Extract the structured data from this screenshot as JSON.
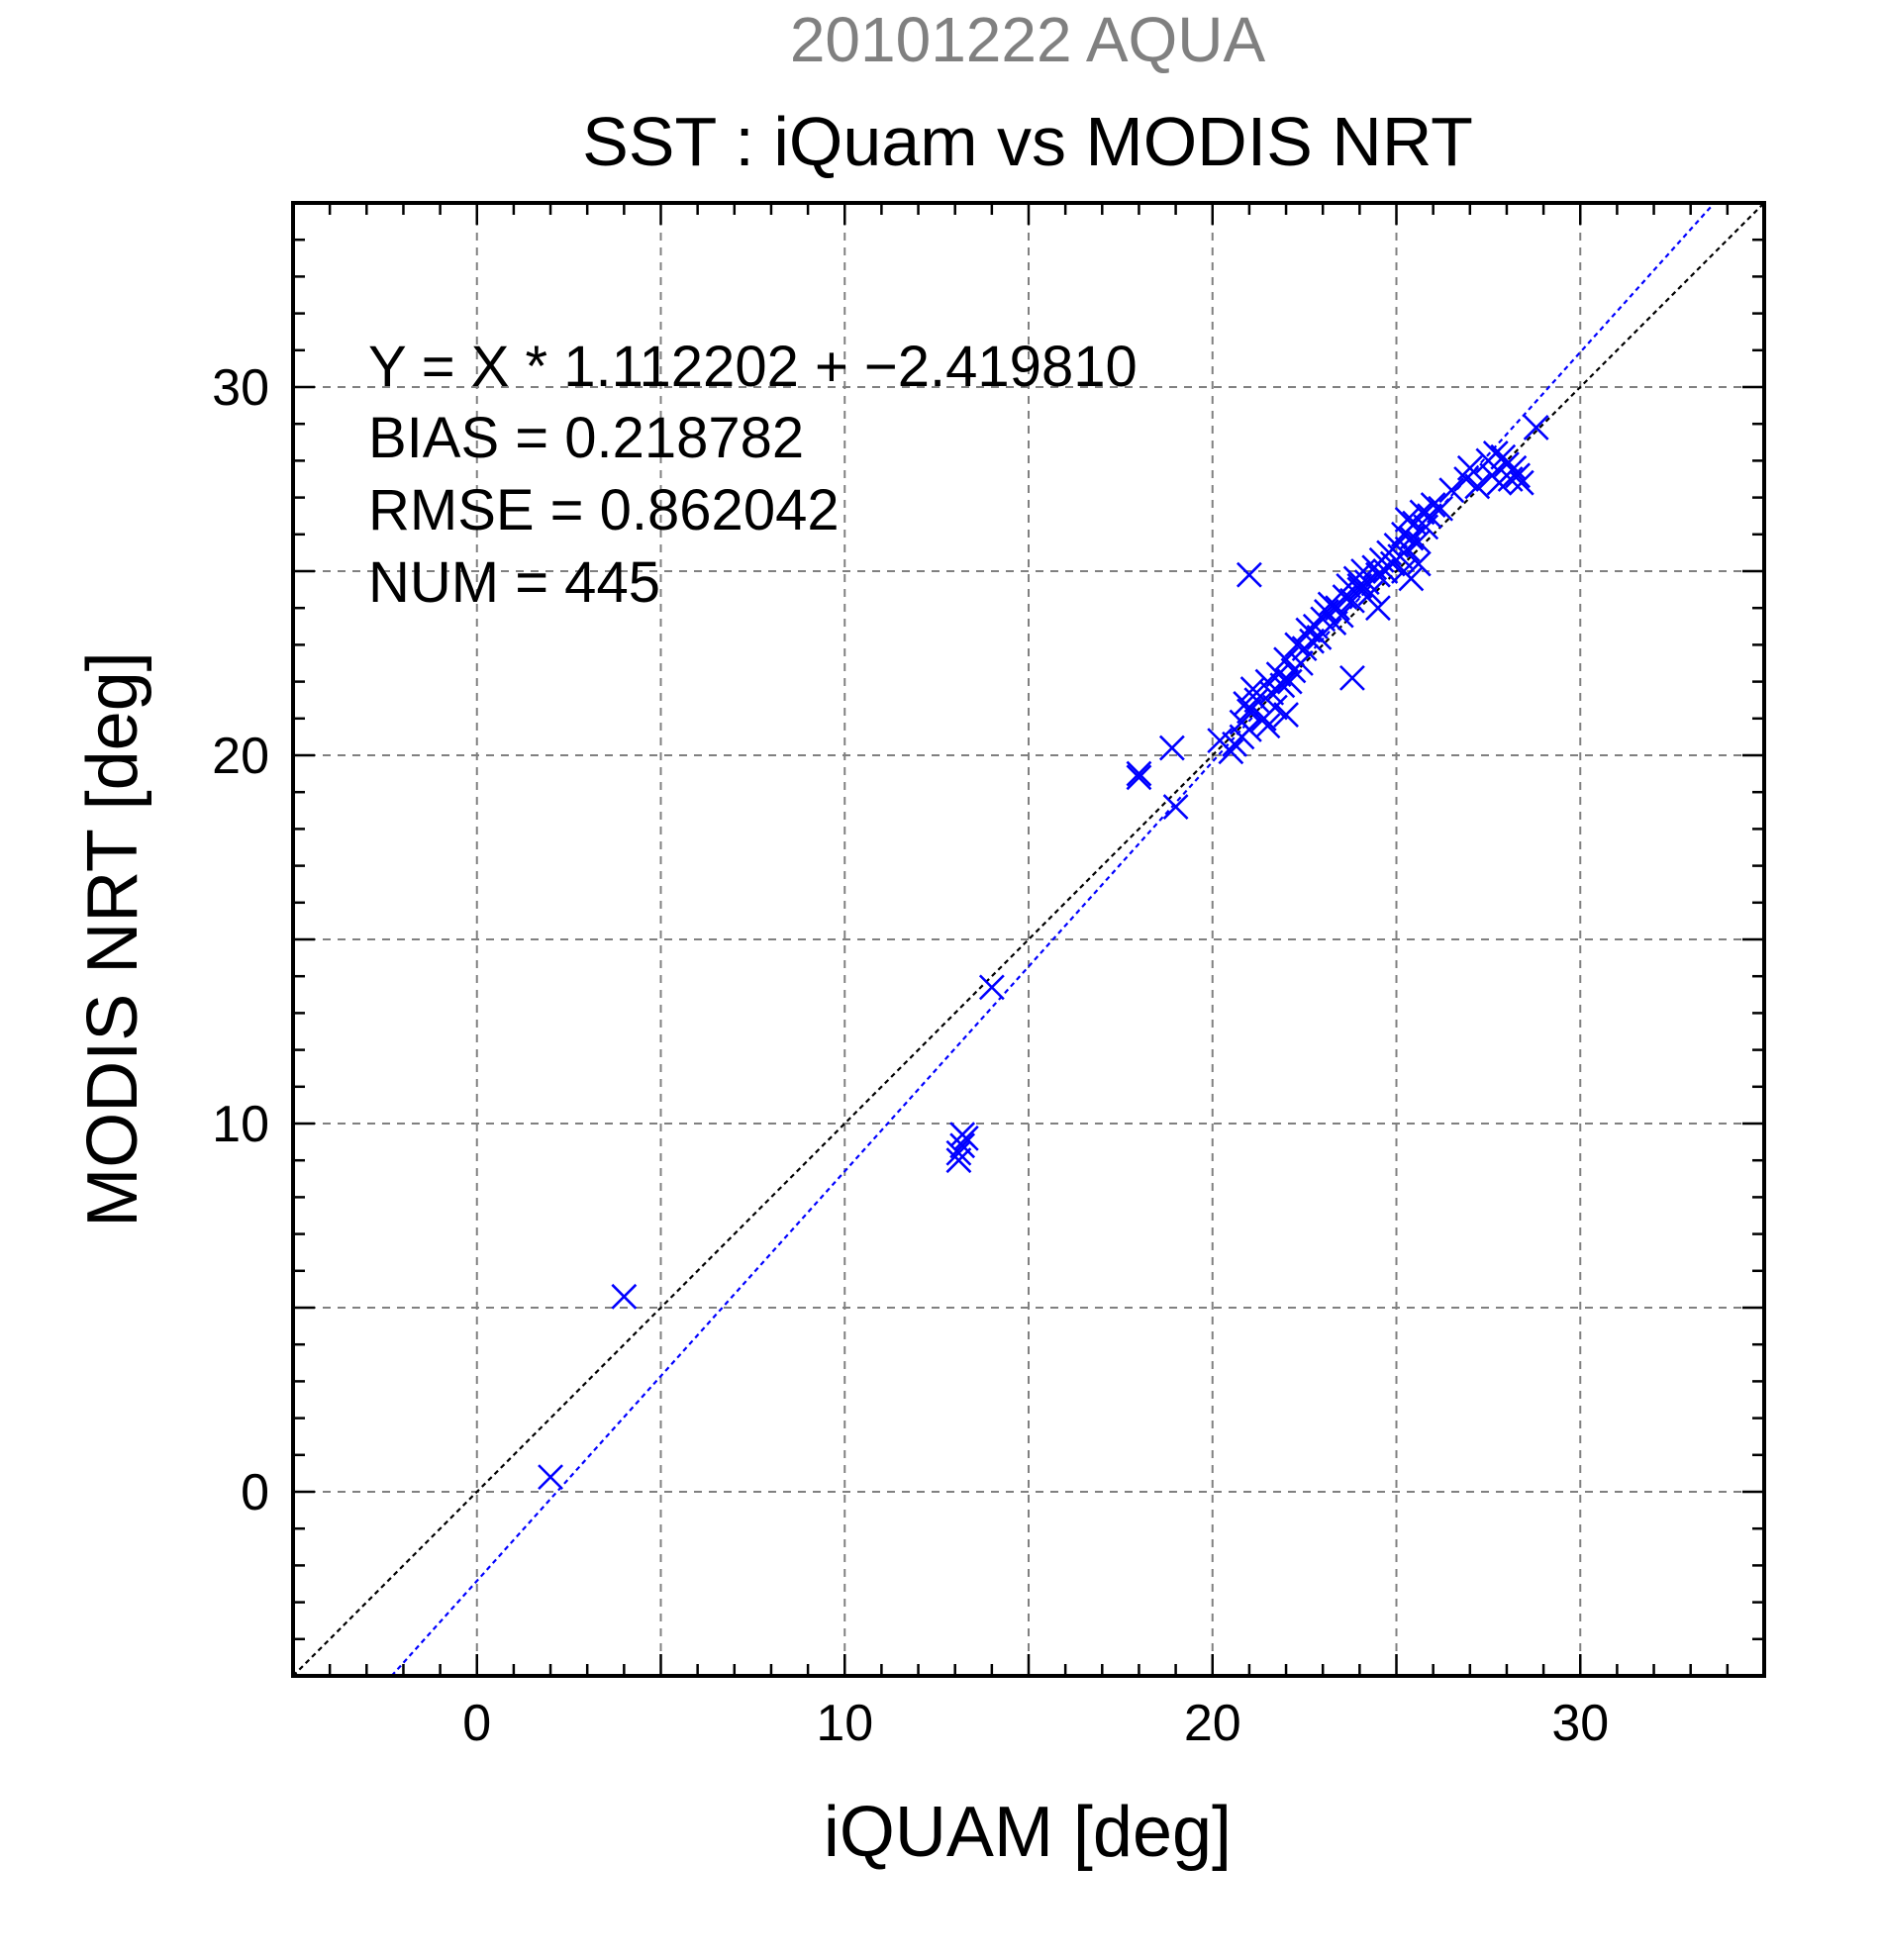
{
  "chart_data": {
    "type": "scatter",
    "header": "20101222 AQUA",
    "title": "SST : iQuam vs MODIS NRT",
    "xlabel": "iQUAM [deg]",
    "ylabel": "MODIS NRT [deg]",
    "xlim": [
      -5,
      35
    ],
    "ylim": [
      -5,
      35
    ],
    "xticks": [
      0,
      10,
      20,
      30
    ],
    "yticks": [
      0,
      10,
      20,
      30
    ],
    "xtick_labels": [
      "0",
      "10",
      "20",
      "30"
    ],
    "ytick_labels": [
      "0",
      "10",
      "20",
      "30"
    ],
    "grid": true,
    "stats": [
      "Y = X * 1.112202 + −2.419810",
      "BIAS = 0.218782",
      "RMSE = 0.862042",
      "NUM = 445"
    ],
    "fit": {
      "slope": 1.112202,
      "intercept": -2.41981
    },
    "colors": {
      "points": "#0000ff",
      "fit_line": "#0000ff",
      "identity_line": "#000000",
      "header": "#808080",
      "grid": "#808080"
    },
    "points": {
      "x": [
        2.0,
        4.0,
        13.1,
        13.2,
        13.2,
        13.3,
        13.1,
        14.0,
        18.0,
        18.0,
        18.9,
        19.0,
        20.2,
        20.5,
        20.6,
        20.8,
        20.9,
        21.0,
        21.0,
        21.1,
        21.2,
        21.4,
        21.5,
        21.6,
        21.7,
        21.8,
        21.9,
        22.0,
        22.1,
        22.2,
        22.3,
        22.4,
        22.5,
        22.6,
        22.7,
        22.8,
        22.9,
        23.0,
        23.1,
        23.2,
        23.3,
        23.4,
        23.5,
        23.6,
        23.7,
        23.8,
        23.9,
        24.0,
        24.1,
        24.2,
        24.3,
        24.4,
        24.5,
        24.6,
        24.7,
        24.8,
        24.9,
        25.0,
        25.1,
        25.2,
        25.3,
        25.4,
        25.5,
        25.6,
        25.7,
        25.8,
        25.9,
        26.0,
        26.2,
        26.5,
        26.9,
        27.0,
        27.2,
        27.5,
        27.6,
        27.7,
        27.8,
        27.9,
        28.0,
        28.1,
        28.2,
        28.3,
        28.4,
        28.8,
        21.0,
        23.8,
        25.2,
        25.4,
        25.6,
        25.3,
        24.0,
        22.0,
        21.5,
        20.8,
        24.5
      ],
      "y": [
        0.4,
        5.3,
        9.0,
        9.4,
        9.7,
        9.6,
        9.2,
        13.7,
        19.5,
        19.4,
        20.2,
        18.6,
        20.4,
        20.1,
        20.3,
        20.9,
        21.4,
        20.7,
        21.2,
        21.8,
        21.5,
        21.0,
        22.0,
        21.7,
        21.3,
        22.2,
        21.9,
        22.6,
        22.0,
        22.3,
        23.0,
        22.5,
        22.9,
        23.4,
        23.1,
        23.5,
        23.2,
        23.7,
        23.9,
        24.1,
        23.6,
        24.0,
        23.8,
        24.3,
        24.6,
        24.2,
        24.8,
        24.5,
        25.0,
        24.7,
        24.4,
        25.1,
        24.9,
        25.3,
        25.0,
        25.5,
        25.2,
        25.7,
        25.4,
        26.0,
        25.6,
        25.9,
        26.3,
        25.8,
        26.6,
        26.2,
        26.5,
        26.8,
        26.7,
        27.2,
        27.5,
        27.8,
        27.3,
        28.0,
        27.6,
        28.2,
        27.4,
        28.1,
        27.9,
        27.5,
        27.8,
        27.6,
        27.4,
        28.9,
        24.9,
        22.1,
        25.0,
        24.8,
        25.2,
        26.4,
        24.6,
        21.1,
        20.8,
        20.5,
        24.0
      ]
    }
  }
}
